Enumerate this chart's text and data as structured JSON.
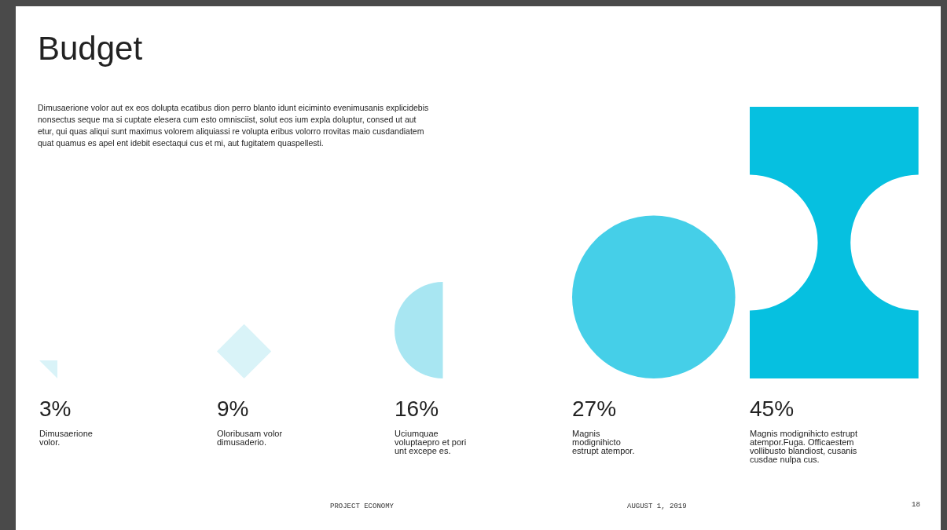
{
  "chart_data": {
    "type": "other",
    "title": "Budget",
    "subtitle": "Dimusaerione volor aut ex eos dolupta ecatibus dion perro blanto idunt eiciminto evenimusanis explicidebis nonsectus seque ma si cuptate elesera cum esto omnisciist, solut eos ium expla doluptur, consed ut aut etur, qui quas aliqui sunt maximus volorem aliquiassi re volupta eribus volorro rrovitas maio cusdandiatem quat quamus es apel ent idebit esectaqui cus et mi, aut fugitatem quaspellesti.",
    "categories": [
      "Dimusaerione volor.",
      "Oloribusam volor dimusaderio.",
      "Uciumquae voluptaepro et pori unt excepe es.",
      "Magnis modignihicto estrupt atempor.",
      "Magnis modignihicto estrupt atempor.Fuga. Officaestem vollibusto blandiost, cusanis cusdae nulpa cus."
    ],
    "values": [
      3,
      9,
      16,
      27,
      45
    ],
    "value_labels": [
      "3%",
      "9%",
      "16%",
      "27%",
      "45%"
    ],
    "colors": [
      "#d9f3f8",
      "#d9f3f8",
      "#a8e6f2",
      "#45cfe8",
      "#06c0e0"
    ],
    "annotations": [
      "PROJECT ECONOMY",
      "AUGUST 1, 2019",
      "18"
    ]
  }
}
